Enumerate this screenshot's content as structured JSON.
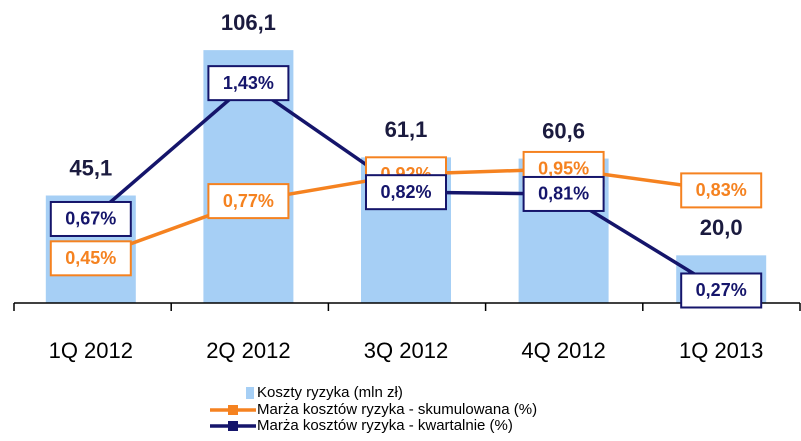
{
  "chart_data": {
    "type": "bar",
    "categories": [
      "1Q 2012",
      "2Q 2012",
      "3Q 2012",
      "4Q 2012",
      "1Q 2013"
    ],
    "ylim": [
      0,
      120
    ],
    "y2lim": [
      0.2,
      1.8
    ],
    "series": [
      {
        "name": "Koszty ryzyka (mln zł)",
        "type": "bar",
        "color": "#a6cff5",
        "values": [
          45.1,
          106.1,
          61.1,
          60.6,
          20.0
        ],
        "value_labels": [
          "45,1",
          "106,1",
          "61,1",
          "60,6",
          "20,0"
        ]
      },
      {
        "name": "Marża kosztów ryzyka - skumulowana (%)",
        "type": "line",
        "axis": "y2",
        "color": "#f58220",
        "values": [
          0.45,
          0.77,
          0.92,
          0.95,
          0.83
        ],
        "value_labels": [
          "0,45%",
          "0,77%",
          "0,92%",
          "0,95%",
          "0,83%"
        ]
      },
      {
        "name": "Marża kosztów ryzyka - kwartalnie (%)",
        "type": "line",
        "axis": "y2",
        "color": "#15156b",
        "values": [
          0.67,
          1.43,
          0.82,
          0.81,
          0.27
        ],
        "value_labels": [
          "0,67%",
          "1,43%",
          "0,82%",
          "0,81%",
          "0,27%"
        ]
      }
    ]
  }
}
